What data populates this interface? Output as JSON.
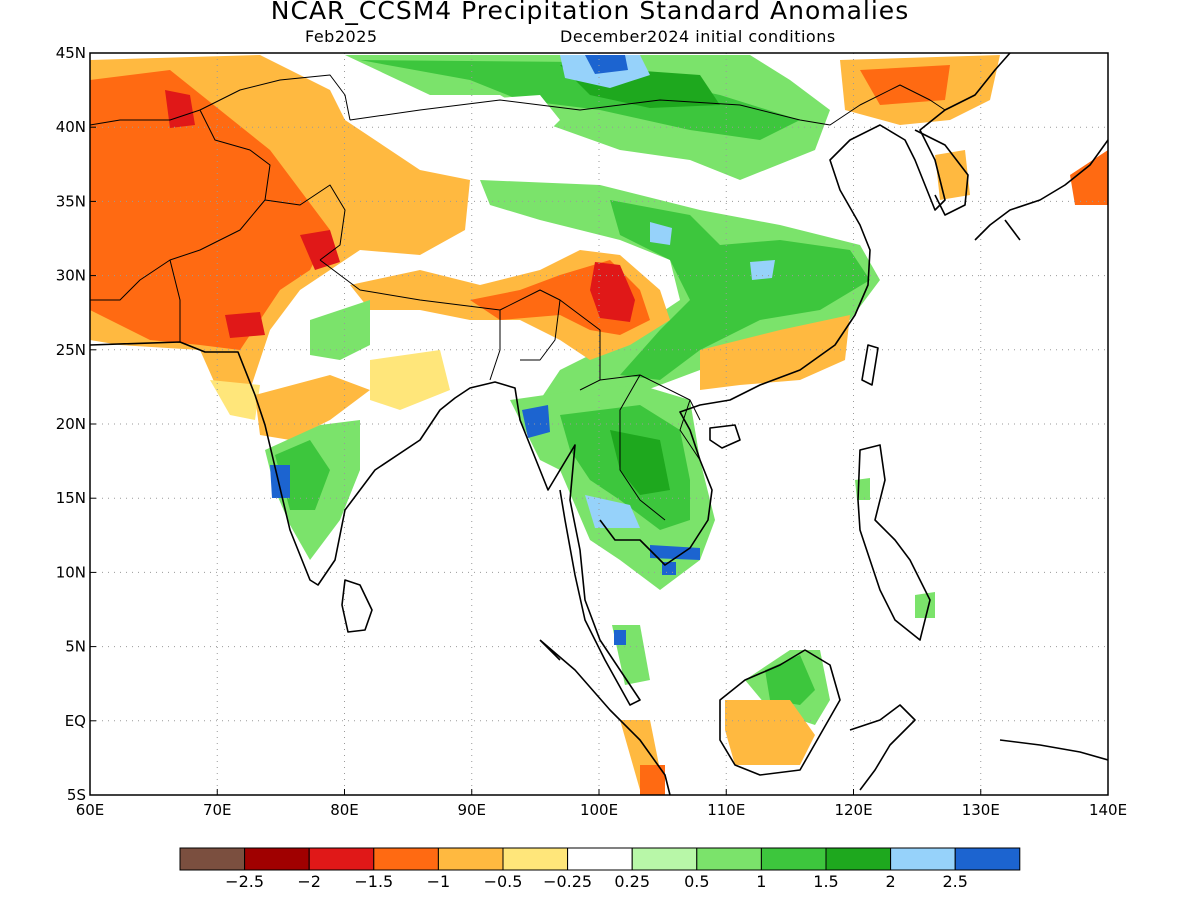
{
  "title": "NCAR_CCSM4 Precipitation Standard Anomalies",
  "subtitle_month": "Feb2025",
  "subtitle_ic": "December2024 initial conditions",
  "map": {
    "lon_range": [
      60,
      140
    ],
    "lat_range": [
      -5,
      45
    ],
    "x_ticks": [
      "60E",
      "70E",
      "80E",
      "90E",
      "100E",
      "110E",
      "120E",
      "130E",
      "140E"
    ],
    "y_ticks": [
      "45N",
      "40N",
      "35N",
      "30N",
      "25N",
      "20N",
      "15N",
      "10N",
      "5N",
      "EQ",
      "5S"
    ],
    "gridlines": "dotted"
  },
  "colorbar": {
    "colors": [
      "#7b4f3f",
      "#a00000",
      "#e01818",
      "#ff6a12",
      "#ffb940",
      "#ffe67a",
      "#ffffff",
      "#b8f7a8",
      "#7be36b",
      "#3dc63d",
      "#1ea81e",
      "#96d2fa",
      "#1c64d0"
    ],
    "labels": [
      "−2.5",
      "−2",
      "−1.5",
      "−1",
      "−0.5",
      "−0.25",
      "0.25",
      "0.5",
      "1",
      "1.5",
      "2",
      "2.5"
    ]
  }
}
